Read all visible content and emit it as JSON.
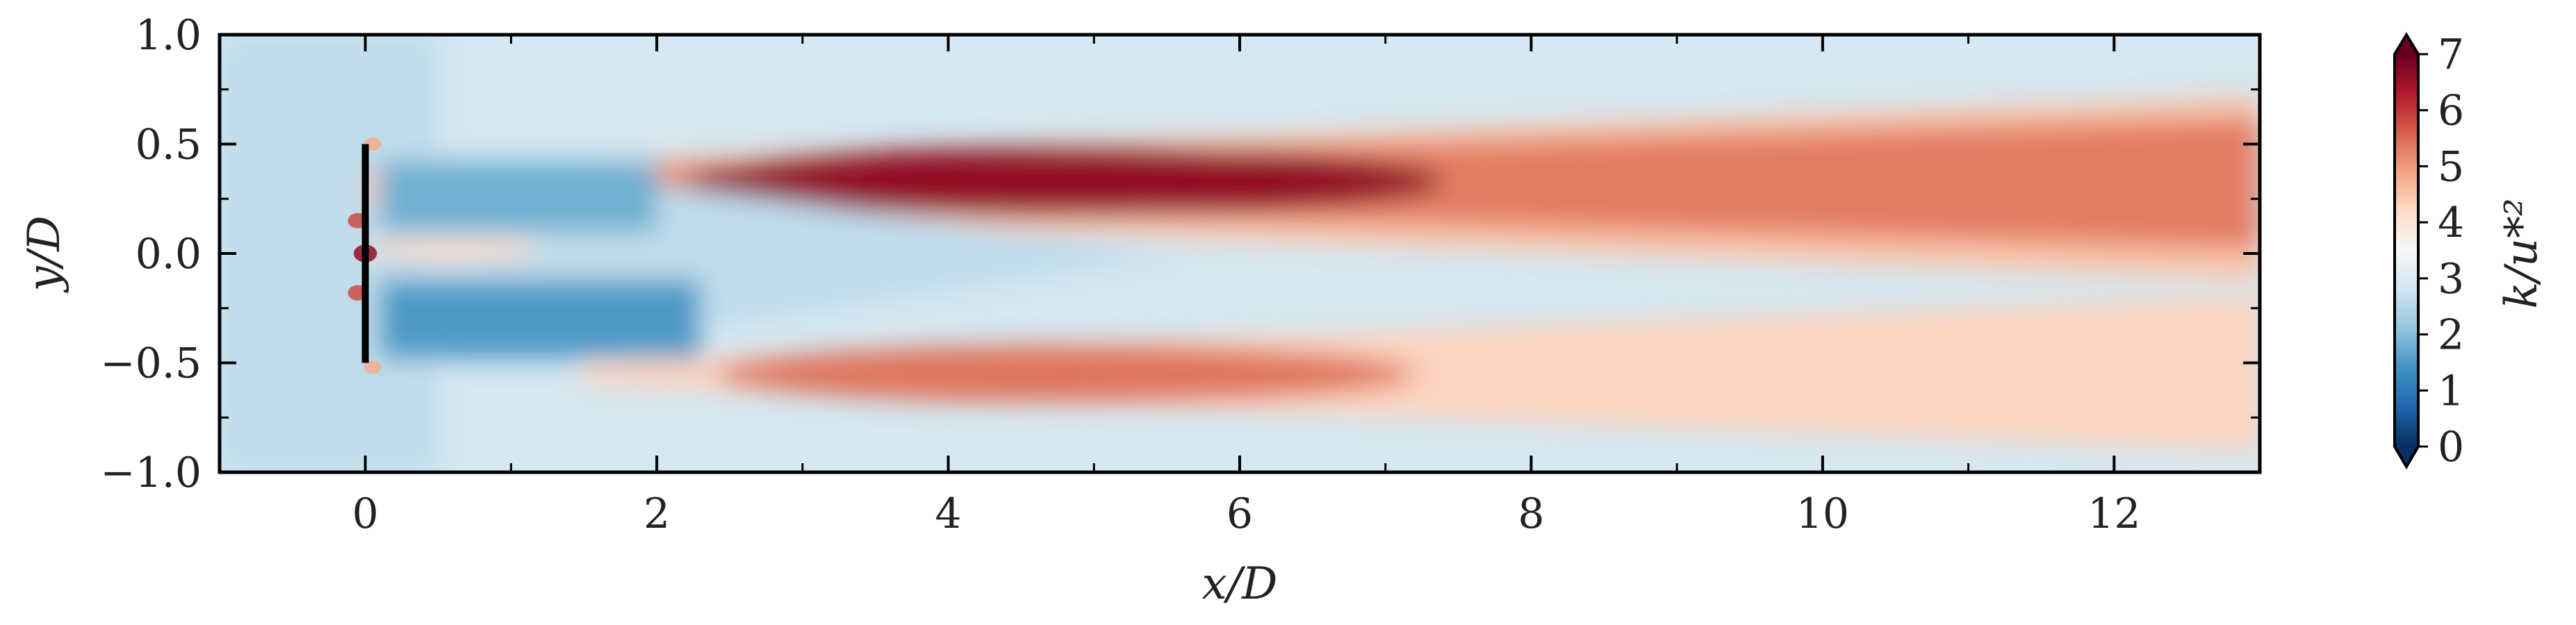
{
  "chart_data": {
    "type": "heatmap",
    "title": "",
    "xlabel": "x/D",
    "ylabel": "y/D",
    "xlim": [
      -1,
      13
    ],
    "ylim": [
      -1,
      1
    ],
    "x_ticks": [
      0,
      2,
      4,
      6,
      8,
      10,
      12
    ],
    "x_tick_labels": [
      "0",
      "2",
      "4",
      "6",
      "8",
      "10",
      "12"
    ],
    "y_ticks": [
      -1.0,
      -0.5,
      0.0,
      0.5,
      1.0
    ],
    "y_tick_labels": [
      "−1.0",
      "−0.5",
      "0.0",
      "0.5",
      "1.0"
    ],
    "colorbar": {
      "label": "k/u*²",
      "range": [
        0,
        7
      ],
      "ticks": [
        0,
        1,
        2,
        3,
        4,
        5,
        6,
        7
      ],
      "tick_labels": [
        "0",
        "1",
        "2",
        "3",
        "4",
        "5",
        "6",
        "7"
      ],
      "colormap": "RdBu_r",
      "extend": "both"
    },
    "turbine": {
      "x": 0,
      "y_range": [
        -0.5,
        0.5
      ]
    },
    "field_features": {
      "upper_shear_layer": {
        "y": 0.3,
        "x_start": 0,
        "x_end": 13,
        "peak_x": 4.8,
        "peak_value": 7
      },
      "lower_shear_layer": {
        "y": -0.55,
        "x_start": 1.5,
        "x_end": 13,
        "peak_x": 4.8,
        "peak_value": 6
      },
      "near_wake_low_region": {
        "x_range": [
          0.1,
          2.3
        ],
        "y_range": [
          -0.5,
          0.5
        ],
        "min_value": 1.5
      },
      "freestream_value": 2.9
    }
  }
}
